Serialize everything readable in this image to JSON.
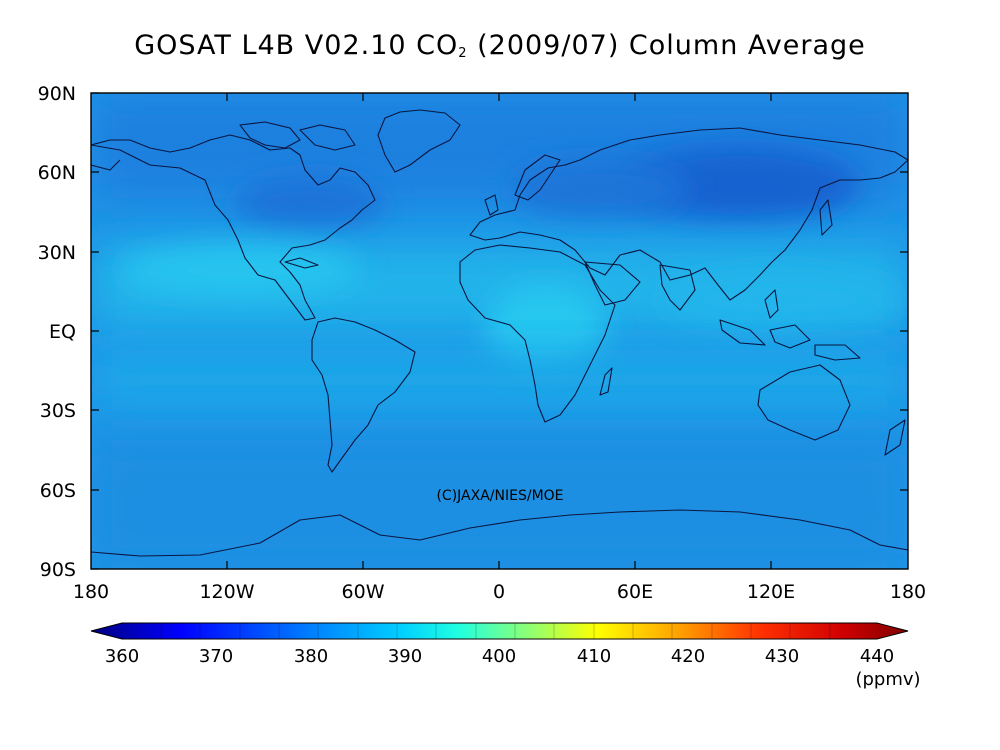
{
  "title": {
    "prefix": "GOSAT L4B V02.10 CO",
    "subscript": "2",
    "suffix": " (2009/07) Column Average"
  },
  "map": {
    "lat_ticks": [
      "90N",
      "60N",
      "30N",
      "EQ",
      "30S",
      "60S",
      "90S"
    ],
    "lon_ticks": [
      "180",
      "120W",
      "60W",
      "0",
      "60E",
      "120E",
      "180"
    ],
    "credit": "(C)JAXA/NIES/MOE"
  },
  "colorbar": {
    "ticks": [
      "360",
      "370",
      "380",
      "390",
      "400",
      "410",
      "420",
      "430",
      "440"
    ],
    "unit": "(ppmv)",
    "min": 360,
    "max": 440,
    "colors": [
      "#00007f",
      "#0000ff",
      "#0066ff",
      "#00b0ff",
      "#00ffff",
      "#66ff99",
      "#ccff33",
      "#ffff00",
      "#ffaa00",
      "#ff5500",
      "#ff0000",
      "#7f0000"
    ]
  },
  "colors": {
    "base_field": "#1e93e6",
    "northern_low": "#1a6fd6",
    "tropical_high": "#22c0ee",
    "southern_band": "#1d8fe2",
    "coastline": "#0a1640"
  }
}
